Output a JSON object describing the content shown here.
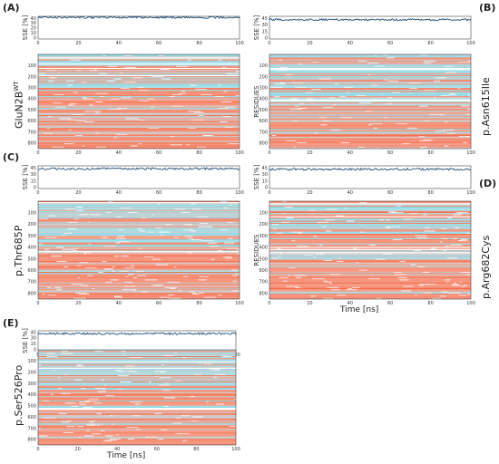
{
  "chart_data": [
    {
      "panel": "(A)",
      "type": "heatmap",
      "side_label": "GluN2B",
      "side_label_sup": "WT",
      "sse_ylabel": "SSE [%]",
      "sse_yticks": [
        "40",
        "30",
        "20",
        "10",
        "0"
      ],
      "sse_value": 42,
      "xticks": [
        "0",
        "20",
        "40",
        "60",
        "80",
        "100"
      ],
      "residue_yticks": [
        "100",
        "200",
        "300",
        "400",
        "500",
        "600",
        "700",
        "800"
      ],
      "xlabel": "",
      "ylabel": ""
    },
    {
      "panel": "(B)",
      "type": "heatmap",
      "side_label": "p.Asn615Ile",
      "sse_ylabel": "SSE [%]",
      "sse_yticks": [
        "45",
        "30",
        "15",
        "0"
      ],
      "sse_value": 42,
      "xticks": [
        "0",
        "20",
        "40",
        "60",
        "80",
        "100"
      ],
      "residue_yticks": [
        "100",
        "200",
        "300",
        "400",
        "500",
        "600",
        "700",
        "800"
      ],
      "xlabel": "",
      "ylabel": "RESIDUES"
    },
    {
      "panel": "(C)",
      "type": "heatmap",
      "side_label": "p.Thr685P",
      "sse_ylabel": "SSE [%]",
      "sse_yticks": [
        "45",
        "30",
        "15",
        "0"
      ],
      "sse_value": 43,
      "xticks": [
        "0",
        "20",
        "40",
        "60",
        "80",
        "100"
      ],
      "residue_yticks": [
        "100",
        "200",
        "300",
        "400",
        "500",
        "600",
        "700",
        "800"
      ],
      "xlabel": "",
      "ylabel": ""
    },
    {
      "panel": "(D)",
      "type": "heatmap",
      "side_label": "p.Arg682Cys",
      "sse_ylabel": "SSE [%]",
      "sse_yticks": [
        "45",
        "30",
        "15",
        "0"
      ],
      "sse_value": 42,
      "xticks": [
        "0",
        "20",
        "40",
        "60",
        "80",
        "100"
      ],
      "residue_yticks": [
        "100",
        "200",
        "300",
        "400",
        "500",
        "600",
        "700",
        "800"
      ],
      "xlabel": "Time [ns]",
      "ylabel": "RESIDUES"
    },
    {
      "panel": "(E)",
      "type": "heatmap",
      "side_label": "p.Ser526Pro",
      "sse_ylabel": "SSE [%]",
      "sse_yticks": [
        "45",
        "30",
        "15",
        "0"
      ],
      "sse_value": 42,
      "xticks": [
        "0",
        "20",
        "40",
        "60",
        "80",
        "100"
      ],
      "residue_yticks": [
        "100",
        "200",
        "300",
        "400",
        "500",
        "600",
        "700",
        "800"
      ],
      "xlabel": "Time [ns]",
      "ylabel": ""
    }
  ],
  "colors": {
    "sse_line": "#1f4e79",
    "helix": "#f26b4a",
    "strand": "#7fd3e0",
    "coil": "#b8b8b8",
    "background": "#ffffff"
  }
}
